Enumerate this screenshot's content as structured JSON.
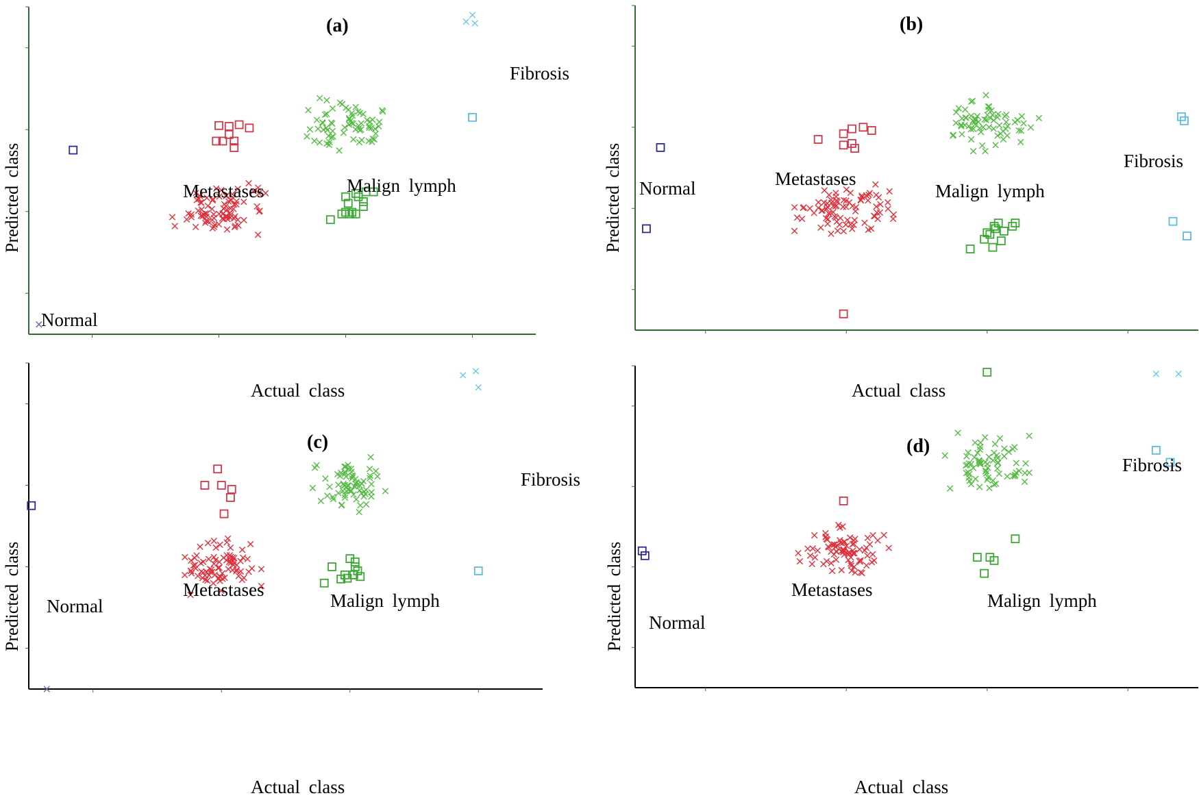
{
  "chart_data": [
    {
      "type": "scatter",
      "title": "(a)",
      "xlabel": "Actual class",
      "ylabel": "Predicted class",
      "xlim": [
        0.5,
        4.5
      ],
      "ylim": [
        0.5,
        4.5
      ],
      "class_labels": [
        {
          "text": "Normal",
          "x": 1.0,
          "y": 1.55
        },
        {
          "text": "Metastases",
          "x": 2.0,
          "y": 2.6
        },
        {
          "text": "Malign  lymph",
          "x": 3.0,
          "y": 2.65
        },
        {
          "text": "Fibrosis",
          "x": 4.3,
          "y": 3.95
        }
      ],
      "series": [
        {
          "name": "Normal",
          "color": "#2b2b8f",
          "marker": "square",
          "points": [
            [
              0.85,
              2.75
            ]
          ]
        },
        {
          "name": "Normal",
          "color": "#6666a8",
          "marker": "x",
          "points": [
            [
              0.58,
              0.62
            ]
          ]
        },
        {
          "name": "Metastases",
          "color": "#d0384a",
          "marker": "square",
          "points": [
            [
              2.0,
              3.05
            ],
            [
              2.08,
              3.04
            ],
            [
              2.16,
              3.06
            ],
            [
              2.24,
              3.02
            ],
            [
              2.03,
              2.86
            ],
            [
              2.08,
              2.94
            ],
            [
              2.12,
              2.86
            ],
            [
              2.12,
              2.78
            ],
            [
              1.98,
              2.86
            ]
          ]
        },
        {
          "name": "Metastases",
          "color": "#e0303c",
          "marker": "x",
          "cx": 2.0,
          "cy": 2.0,
          "sx": 0.32,
          "sy": 0.3,
          "n": 85
        },
        {
          "name": "Malign lymph",
          "color": "#3aa832",
          "marker": "square",
          "points": [
            [
              2.88,
              1.9
            ],
            [
              2.97,
              1.97
            ],
            [
              3.05,
              1.99
            ],
            [
              3.08,
              1.97
            ],
            [
              3.02,
              2.1
            ],
            [
              3.0,
              2.18
            ],
            [
              3.08,
              2.22
            ],
            [
              3.14,
              2.12
            ],
            [
              3.14,
              2.06
            ],
            [
              3.16,
              2.24
            ],
            [
              3.22,
              2.24
            ],
            [
              3.0,
              1.99
            ],
            [
              3.03,
              1.97
            ],
            [
              3.1,
              2.18
            ]
          ]
        },
        {
          "name": "Malign lymph",
          "color": "#55bb44",
          "marker": "x",
          "cx": 3.0,
          "cy": 3.05,
          "sx": 0.32,
          "sy": 0.3,
          "n": 70
        },
        {
          "name": "Fibrosis",
          "color": "#5bbcdc",
          "marker": "square",
          "points": [
            [
              4.0,
              3.15
            ]
          ]
        },
        {
          "name": "Fibrosis",
          "color": "#6cc8e4",
          "marker": "x",
          "points": [
            [
              3.95,
              4.32
            ],
            [
              4.0,
              4.4
            ],
            [
              4.02,
              4.3
            ]
          ]
        }
      ]
    },
    {
      "type": "scatter",
      "title": "(b)",
      "xlabel": "Actual class",
      "ylabel": "Predicted class",
      "xlim": [
        0.5,
        4.5
      ],
      "ylim": [
        0.5,
        4.5
      ],
      "class_labels": [
        {
          "text": "Normal",
          "x": 1.0,
          "y": 2.3
        },
        {
          "text": "Metastases",
          "x": 2.0,
          "y": 2.45
        },
        {
          "text": "Malign  lymph",
          "x": 3.0,
          "y": 2.35
        },
        {
          "text": "Fibrosis",
          "x": 4.3,
          "y": 2.75
        }
      ],
      "series": [
        {
          "name": "Normal",
          "color": "#2b2b8f",
          "marker": "square",
          "points": [
            [
              0.68,
              2.75
            ],
            [
              0.58,
              1.75
            ]
          ]
        },
        {
          "name": "Metastases",
          "color": "#d0384a",
          "marker": "square",
          "points": [
            [
              1.8,
              2.85
            ],
            [
              1.98,
              2.92
            ],
            [
              2.04,
              2.98
            ],
            [
              2.12,
              3.0
            ],
            [
              2.18,
              2.96
            ],
            [
              2.04,
              2.8
            ],
            [
              1.98,
              2.78
            ],
            [
              2.06,
              2.74
            ],
            [
              1.98,
              0.7
            ]
          ]
        },
        {
          "name": "Metastases",
          "color": "#e0303c",
          "marker": "x",
          "cx": 2.0,
          "cy": 1.95,
          "sx": 0.32,
          "sy": 0.3,
          "n": 85
        },
        {
          "name": "Malign lymph",
          "color": "#3aa832",
          "marker": "square",
          "points": [
            [
              2.88,
              1.5
            ],
            [
              2.98,
              1.62
            ],
            [
              3.02,
              1.68
            ],
            [
              3.05,
              1.78
            ],
            [
              3.08,
              1.82
            ],
            [
              3.12,
              1.72
            ],
            [
              3.18,
              1.78
            ],
            [
              3.2,
              1.82
            ],
            [
              3.1,
              1.6
            ],
            [
              3.04,
              1.52
            ],
            [
              3.0,
              1.7
            ],
            [
              3.06,
              1.75
            ]
          ]
        },
        {
          "name": "Malign lymph",
          "color": "#55bb44",
          "marker": "x",
          "cx": 3.0,
          "cy": 3.05,
          "sx": 0.32,
          "sy": 0.3,
          "n": 70
        },
        {
          "name": "Fibrosis",
          "color": "#5bbcdc",
          "marker": "square",
          "points": [
            [
              4.38,
              3.13
            ],
            [
              4.4,
              3.08
            ],
            [
              4.32,
              1.84
            ],
            [
              4.42,
              1.66
            ]
          ]
        }
      ]
    },
    {
      "type": "scatter",
      "title": "(c)",
      "xlabel": "Actual class",
      "ylabel": "Predicted class",
      "xlim": [
        0.5,
        4.5
      ],
      "ylim": [
        0.5,
        4.5
      ],
      "class_labels": [
        {
          "text": "Normal",
          "x": 1.0,
          "y": 2.4
        },
        {
          "text": "Metastases",
          "x": 2.0,
          "y": 2.5
        },
        {
          "text": "Malign  lymph",
          "x": 3.0,
          "y": 2.4
        },
        {
          "text": "Fibrosis",
          "x": 4.3,
          "y": 3.85
        }
      ],
      "series": [
        {
          "name": "Normal",
          "color": "#2b2b8f",
          "marker": "square",
          "points": [
            [
              0.52,
              2.75
            ]
          ]
        },
        {
          "name": "Normal",
          "color": "#6666a8",
          "marker": "x",
          "points": [
            [
              0.64,
              0.5
            ]
          ]
        },
        {
          "name": "Metastases",
          "color": "#d0384a",
          "marker": "square",
          "points": [
            [
              1.87,
              3.0
            ],
            [
              1.97,
              3.2
            ],
            [
              2.0,
              3.0
            ],
            [
              2.08,
              2.95
            ],
            [
              2.07,
              2.85
            ],
            [
              2.02,
              2.65
            ]
          ]
        },
        {
          "name": "Metastases",
          "color": "#e0303c",
          "marker": "x",
          "cx": 2.0,
          "cy": 2.0,
          "sx": 0.27,
          "sy": 0.3,
          "n": 85
        },
        {
          "name": "Malign lymph",
          "color": "#3aa832",
          "marker": "square",
          "points": [
            [
              2.8,
              1.8
            ],
            [
              2.86,
              2.0
            ],
            [
              2.93,
              1.85
            ],
            [
              2.98,
              1.86
            ],
            [
              3.03,
              1.9
            ],
            [
              3.04,
              2.0
            ],
            [
              3.06,
              1.95
            ],
            [
              3.08,
              1.88
            ],
            [
              3.0,
              2.1
            ],
            [
              3.04,
              2.06
            ],
            [
              2.96,
              1.9
            ]
          ]
        },
        {
          "name": "Malign lymph",
          "color": "#55bb44",
          "marker": "x",
          "cx": 3.0,
          "cy": 3.0,
          "sx": 0.26,
          "sy": 0.3,
          "n": 70
        },
        {
          "name": "Fibrosis",
          "color": "#5bbcdc",
          "marker": "square",
          "points": [
            [
              4.0,
              1.95
            ]
          ]
        },
        {
          "name": "Fibrosis",
          "color": "#6cc8e4",
          "marker": "x",
          "points": [
            [
              3.88,
              4.35
            ],
            [
              3.98,
              4.4
            ],
            [
              4.0,
              4.2
            ]
          ]
        }
      ]
    },
    {
      "type": "scatter",
      "title": "(d)",
      "xlabel": "Actual class",
      "ylabel": "Predicted class",
      "xlim": [
        0.5,
        4.5
      ],
      "ylim": [
        0.5,
        4.5
      ],
      "class_labels": [
        {
          "text": "Normal",
          "x": 0.78,
          "y": 2.35
        },
        {
          "text": "Metastases",
          "x": 2.0,
          "y": 2.7
        },
        {
          "text": "Malign  lymph",
          "x": 3.0,
          "y": 2.6
        },
        {
          "text": "Fibrosis",
          "x": 4.3,
          "y": 3.85
        }
      ],
      "series": [
        {
          "name": "Normal",
          "color": "#2b2b8f",
          "marker": "square",
          "points": [
            [
              0.55,
              2.2
            ],
            [
              0.57,
              2.14
            ]
          ]
        },
        {
          "name": "Metastases",
          "color": "#d0384a",
          "marker": "square",
          "points": [
            [
              1.98,
              2.82
            ]
          ]
        },
        {
          "name": "Metastases",
          "color": "#e0303c",
          "marker": "x",
          "cx": 1.98,
          "cy": 2.2,
          "sx": 0.28,
          "sy": 0.28,
          "n": 85
        },
        {
          "name": "Malign lymph",
          "color": "#3aa832",
          "marker": "square",
          "points": [
            [
              2.93,
              2.12
            ],
            [
              3.02,
              2.12
            ],
            [
              3.05,
              2.08
            ],
            [
              2.98,
              1.92
            ],
            [
              3.2,
              2.35
            ],
            [
              3.0,
              4.42
            ]
          ]
        },
        {
          "name": "Malign lymph",
          "color": "#55bb44",
          "marker": "x",
          "cx": 3.0,
          "cy": 3.32,
          "sx": 0.26,
          "sy": 0.3,
          "n": 70
        },
        {
          "name": "Fibrosis",
          "color": "#5bbcdc",
          "marker": "square",
          "points": [
            [
              4.2,
              3.45
            ],
            [
              4.3,
              3.3
            ]
          ]
        },
        {
          "name": "Fibrosis",
          "color": "#6cc8e4",
          "marker": "x",
          "points": [
            [
              4.2,
              4.4
            ],
            [
              4.36,
              4.4
            ]
          ]
        }
      ]
    }
  ]
}
